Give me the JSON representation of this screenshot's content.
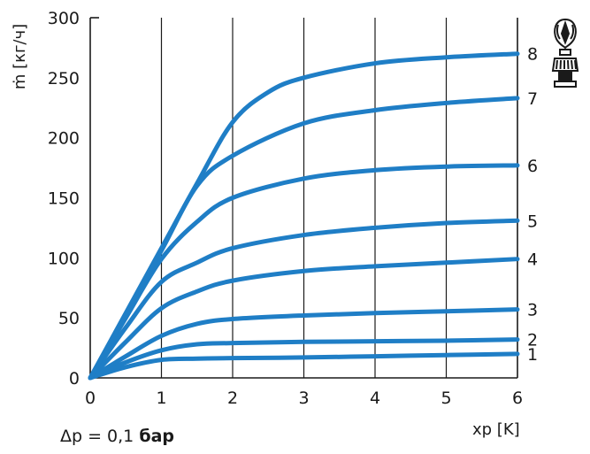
{
  "chart_data": {
    "type": "line",
    "title": "",
    "xlabel": "xp [K]",
    "ylabel": "ṁ [кг/ч]",
    "xlim": [
      0,
      6
    ],
    "ylim": [
      0,
      300
    ],
    "x_ticks": [
      "0",
      "1",
      "2",
      "3",
      "4",
      "5",
      "6"
    ],
    "y_ticks": [
      "0",
      "50",
      "100",
      "150",
      "200",
      "250",
      "300"
    ],
    "grid": "vertical",
    "line_color": "#1f7ec6",
    "series": [
      {
        "name": "1",
        "points": [
          [
            0,
            0
          ],
          [
            0.5,
            9
          ],
          [
            1,
            15
          ],
          [
            1.5,
            16
          ],
          [
            2,
            16.5
          ],
          [
            3,
            17
          ],
          [
            4,
            18
          ],
          [
            5,
            19
          ],
          [
            6,
            20
          ]
        ]
      },
      {
        "name": "2",
        "points": [
          [
            0,
            0
          ],
          [
            0.5,
            13
          ],
          [
            1,
            23
          ],
          [
            1.5,
            28
          ],
          [
            2,
            29
          ],
          [
            3,
            30
          ],
          [
            4,
            30.5
          ],
          [
            5,
            31
          ],
          [
            6,
            32
          ]
        ]
      },
      {
        "name": "3",
        "points": [
          [
            0,
            0
          ],
          [
            0.5,
            18
          ],
          [
            1,
            35
          ],
          [
            1.5,
            45
          ],
          [
            2,
            49
          ],
          [
            3,
            52
          ],
          [
            4,
            54
          ],
          [
            5,
            55.5
          ],
          [
            6,
            57
          ]
        ]
      },
      {
        "name": "4",
        "points": [
          [
            0,
            0
          ],
          [
            0.5,
            30
          ],
          [
            1,
            58
          ],
          [
            1.5,
            72
          ],
          [
            2,
            81
          ],
          [
            3,
            89
          ],
          [
            4,
            93
          ],
          [
            5,
            96
          ],
          [
            6,
            99
          ]
        ]
      },
      {
        "name": "5",
        "points": [
          [
            0,
            0
          ],
          [
            0.5,
            42
          ],
          [
            1,
            80
          ],
          [
            1.5,
            96
          ],
          [
            2,
            108
          ],
          [
            3,
            119
          ],
          [
            4,
            125
          ],
          [
            5,
            129
          ],
          [
            6,
            131
          ]
        ]
      },
      {
        "name": "6",
        "points": [
          [
            0,
            0
          ],
          [
            0.5,
            50
          ],
          [
            1,
            99
          ],
          [
            1.5,
            130
          ],
          [
            2,
            150
          ],
          [
            3,
            166
          ],
          [
            4,
            173
          ],
          [
            5,
            176
          ],
          [
            6,
            177
          ]
        ]
      },
      {
        "name": "7",
        "points": [
          [
            0,
            0
          ],
          [
            0.5,
            53
          ],
          [
            1,
            106
          ],
          [
            1.5,
            160
          ],
          [
            2,
            185
          ],
          [
            3,
            212
          ],
          [
            4,
            223
          ],
          [
            5,
            229
          ],
          [
            6,
            233
          ]
        ]
      },
      {
        "name": "8",
        "points": [
          [
            0,
            0
          ],
          [
            0.5,
            54
          ],
          [
            1,
            108
          ],
          [
            1.5,
            162
          ],
          [
            2,
            213
          ],
          [
            2.5,
            238
          ],
          [
            3,
            250
          ],
          [
            4,
            262
          ],
          [
            5,
            267
          ],
          [
            6,
            270
          ]
        ]
      }
    ]
  },
  "note": {
    "prefix": "Δp = 0,1 ",
    "unit": "бар"
  },
  "icon": "thermostatic-valve-head-icon"
}
